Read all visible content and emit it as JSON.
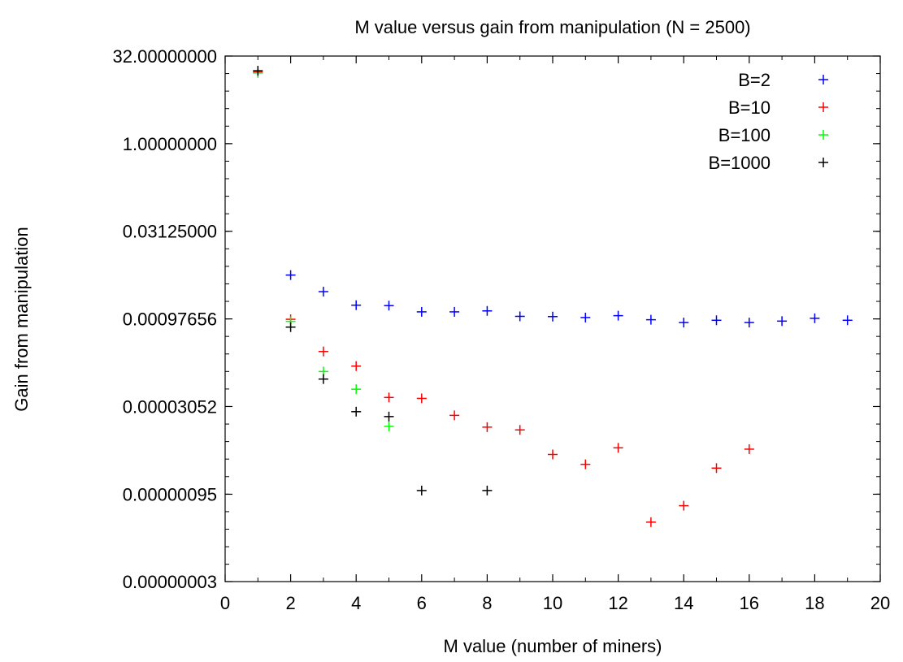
{
  "chart_data": {
    "type": "scatter",
    "title": "M value versus gain from manipulation (N = 2500)",
    "xlabel": "M value (number of miners)",
    "ylabel": "Gain from manipulation",
    "xlim": [
      0,
      20
    ],
    "x_ticks": [
      0,
      2,
      4,
      6,
      8,
      10,
      12,
      14,
      16,
      18,
      20
    ],
    "ylim": [
      3e-08,
      32
    ],
    "y_scale": "log2",
    "y_ticks": [
      {
        "value": 3e-08,
        "label": "0.00000003"
      },
      {
        "value": 9.5e-07,
        "label": "0.00000095"
      },
      {
        "value": 3.052e-05,
        "label": "0.00003052"
      },
      {
        "value": 0.00097656,
        "label": "0.00097656"
      },
      {
        "value": 0.03125,
        "label": "0.03125000"
      },
      {
        "value": 1,
        "label": "1.00000000"
      },
      {
        "value": 32,
        "label": "32.00000000"
      }
    ],
    "grid": false,
    "legend_position": "top-right",
    "marker": "+",
    "series": [
      {
        "name": "B=2",
        "color": "#0000ff",
        "points": [
          [
            1,
            16.5
          ],
          [
            2,
            0.00553
          ],
          [
            3,
            0.00287
          ],
          [
            4,
            0.00168
          ],
          [
            5,
            0.00165
          ],
          [
            6,
            0.00129
          ],
          [
            7,
            0.00129
          ],
          [
            8,
            0.00134
          ],
          [
            9,
            0.00108
          ],
          [
            10,
            0.00107
          ],
          [
            11,
            0.00103
          ],
          [
            12,
            0.00111
          ],
          [
            13,
            0.000945
          ],
          [
            14,
            0.000845
          ],
          [
            15,
            0.000925
          ],
          [
            16,
            0.000845
          ],
          [
            17,
            0.000895
          ],
          [
            18,
            0.001
          ],
          [
            19,
            0.000925
          ]
        ]
      },
      {
        "name": "B=10",
        "color": "#ff0000",
        "points": [
          [
            1,
            17.1
          ],
          [
            2,
            0.000962
          ],
          [
            3,
            0.000269
          ],
          [
            4,
            0.000151
          ],
          [
            5,
            4.37e-05
          ],
          [
            6,
            4.21e-05
          ],
          [
            7,
            2.15e-05
          ],
          [
            8,
            1.35e-05
          ],
          [
            9,
            1.21e-05
          ],
          [
            10,
            4.58e-06
          ],
          [
            11,
            3.1e-06
          ],
          [
            12,
            5.96e-06
          ],
          [
            13,
            3.15e-07
          ],
          [
            14,
            6.04e-07
          ],
          [
            15,
            2.67e-06
          ],
          [
            16,
            5.65e-06
          ]
        ]
      },
      {
        "name": "B=100",
        "color": "#00ff00",
        "points": [
          [
            1,
            16.5
          ],
          [
            2,
            0.000886
          ],
          [
            3,
            0.000122
          ],
          [
            4,
            6.05e-05
          ],
          [
            5,
            1.39e-05
          ]
        ]
      },
      {
        "name": "B=1000",
        "color": "#000000",
        "points": [
          [
            1,
            17.9
          ],
          [
            2,
            0.000706
          ],
          [
            3,
            9.04e-05
          ],
          [
            4,
            2.49e-05
          ],
          [
            5,
            2.05e-05
          ],
          [
            6,
            1.1e-06
          ],
          [
            8,
            1.1e-06
          ]
        ]
      }
    ]
  }
}
